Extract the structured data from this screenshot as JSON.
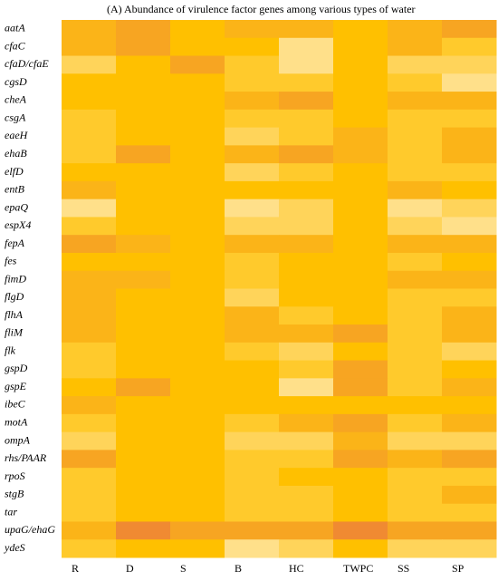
{
  "chart_data": {
    "type": "heatmap",
    "title": "(A) Abundance of virulence factor genes among various types of water",
    "columns": [
      "R",
      "D",
      "S",
      "B",
      "HC",
      "TWPC",
      "SS",
      "SP"
    ],
    "rows": [
      "aatA",
      "cfaC",
      "cfaD/cfaE",
      "cgsD",
      "cheA",
      "csgA",
      "eaeH",
      "ehaB",
      "elfD",
      "entB",
      "epaQ",
      "espX4",
      "fepA",
      "fes",
      "fimD",
      "flgD",
      "flhA",
      "fliM",
      "flk",
      "gspD",
      "gspE",
      "ibeC",
      "motA",
      "ompA",
      "rhs/PAAR",
      "rpoS",
      "stgB",
      "tar",
      "upaG/ehaG",
      "ydeS"
    ],
    "cell_colors": [
      [
        "#fbb418",
        "#f7a522",
        "#ffc000",
        "#fbb418",
        "#fbb418",
        "#ffc000",
        "#fbb418",
        "#f7a522"
      ],
      [
        "#fbb418",
        "#f7a522",
        "#ffc000",
        "#ffc000",
        "#ffe08a",
        "#ffc000",
        "#fbb418",
        "#ffca2c"
      ],
      [
        "#ffd45a",
        "#ffc000",
        "#f7a522",
        "#ffca2c",
        "#ffe08a",
        "#ffc000",
        "#ffd45a",
        "#ffd45a"
      ],
      [
        "#ffc000",
        "#ffc000",
        "#ffc000",
        "#ffca2c",
        "#ffca2c",
        "#ffc000",
        "#ffca2c",
        "#ffe08a"
      ],
      [
        "#ffc000",
        "#ffc000",
        "#ffc000",
        "#fbb418",
        "#f7a522",
        "#ffc000",
        "#fbb418",
        "#fbb418"
      ],
      [
        "#ffca2c",
        "#ffc000",
        "#ffc000",
        "#ffca2c",
        "#ffca2c",
        "#ffc000",
        "#ffca2c",
        "#ffca2c"
      ],
      [
        "#ffca2c",
        "#ffc000",
        "#ffc000",
        "#ffd45a",
        "#ffca2c",
        "#fbb418",
        "#ffca2c",
        "#fbb418"
      ],
      [
        "#ffca2c",
        "#f7a522",
        "#ffc000",
        "#fbb418",
        "#f7a522",
        "#fbb418",
        "#ffca2c",
        "#fbb418"
      ],
      [
        "#ffc000",
        "#ffc000",
        "#ffc000",
        "#ffd45a",
        "#ffca2c",
        "#ffc000",
        "#ffca2c",
        "#ffca2c"
      ],
      [
        "#fbb418",
        "#ffc000",
        "#ffc000",
        "#ffc000",
        "#ffc000",
        "#ffc000",
        "#fbb418",
        "#ffc000"
      ],
      [
        "#ffe08a",
        "#ffc000",
        "#ffc000",
        "#ffe08a",
        "#ffd45a",
        "#ffc000",
        "#ffe08a",
        "#ffd45a"
      ],
      [
        "#ffca2c",
        "#ffc000",
        "#ffc000",
        "#ffd45a",
        "#ffd45a",
        "#ffc000",
        "#ffd45a",
        "#ffe08a"
      ],
      [
        "#f7a522",
        "#fbb418",
        "#ffc000",
        "#fbb418",
        "#fbb418",
        "#ffc000",
        "#fbb418",
        "#fbb418"
      ],
      [
        "#ffc000",
        "#ffc000",
        "#ffc000",
        "#ffca2c",
        "#ffc000",
        "#ffc000",
        "#ffca2c",
        "#ffc000"
      ],
      [
        "#fbb418",
        "#fbb418",
        "#ffc000",
        "#ffca2c",
        "#ffc000",
        "#ffc000",
        "#fbb418",
        "#fbb418"
      ],
      [
        "#fbb418",
        "#ffc000",
        "#ffc000",
        "#ffd45a",
        "#ffc000",
        "#ffc000",
        "#ffca2c",
        "#ffca2c"
      ],
      [
        "#fbb418",
        "#ffc000",
        "#ffc000",
        "#fbb418",
        "#ffca2c",
        "#ffc000",
        "#ffca2c",
        "#fbb418"
      ],
      [
        "#fbb418",
        "#ffc000",
        "#ffc000",
        "#fbb418",
        "#fbb418",
        "#f7a522",
        "#ffca2c",
        "#fbb418"
      ],
      [
        "#ffca2c",
        "#ffc000",
        "#ffc000",
        "#ffca2c",
        "#ffd45a",
        "#ffc000",
        "#ffca2c",
        "#ffd45a"
      ],
      [
        "#ffca2c",
        "#ffc000",
        "#ffc000",
        "#ffc000",
        "#ffca2c",
        "#f7a522",
        "#ffca2c",
        "#ffc000"
      ],
      [
        "#ffc000",
        "#f7a522",
        "#ffc000",
        "#ffc000",
        "#ffe08a",
        "#f7a522",
        "#ffca2c",
        "#fbb418"
      ],
      [
        "#fbb418",
        "#ffc000",
        "#ffc000",
        "#ffc000",
        "#ffc000",
        "#ffc000",
        "#ffc000",
        "#ffc000"
      ],
      [
        "#ffca2c",
        "#ffc000",
        "#ffc000",
        "#ffca2c",
        "#fbb418",
        "#f7a522",
        "#ffca2c",
        "#fbb418"
      ],
      [
        "#ffd45a",
        "#ffc000",
        "#ffc000",
        "#ffd45a",
        "#ffd45a",
        "#fbb418",
        "#ffd45a",
        "#ffd45a"
      ],
      [
        "#f7a522",
        "#ffc000",
        "#ffc000",
        "#ffca2c",
        "#ffca2c",
        "#f7a522",
        "#fbb418",
        "#f7a522"
      ],
      [
        "#ffca2c",
        "#ffc000",
        "#ffc000",
        "#ffca2c",
        "#ffc000",
        "#ffc000",
        "#ffca2c",
        "#ffca2c"
      ],
      [
        "#ffca2c",
        "#ffc000",
        "#ffc000",
        "#ffca2c",
        "#ffca2c",
        "#ffc000",
        "#ffca2c",
        "#fbb418"
      ],
      [
        "#ffca2c",
        "#ffc000",
        "#ffc000",
        "#ffca2c",
        "#ffca2c",
        "#ffc000",
        "#ffca2c",
        "#ffca2c"
      ],
      [
        "#fbb418",
        "#f08a32",
        "#f7a522",
        "#f7a522",
        "#f7a522",
        "#f08a32",
        "#f7a522",
        "#f7a522"
      ],
      [
        "#ffca2c",
        "#ffc000",
        "#ffc000",
        "#ffe08a",
        "#ffd45a",
        "#ffc000",
        "#ffd45a",
        "#ffd45a"
      ]
    ]
  }
}
